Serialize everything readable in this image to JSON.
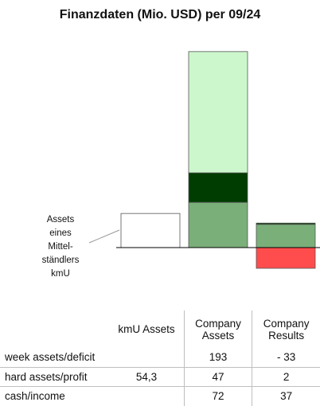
{
  "title": "Finanzdaten (Mio. USD) per 09/24",
  "note": "Assets\neines\nMittel-\nständlers\nkmU",
  "table": {
    "headers": [
      "",
      "kmU Assets",
      "Company\nAssets",
      "Company\nResults"
    ],
    "rows": [
      {
        "label": "week assets/deficit",
        "kmu": "",
        "assets": "193",
        "results": "- 33"
      },
      {
        "label": "hard assets/profit",
        "kmu": "54,3",
        "assets": "47",
        "results": "2"
      },
      {
        "label": "cash/income",
        "kmu": "",
        "assets": "72",
        "results": "37"
      }
    ]
  },
  "chart_data": {
    "type": "bar",
    "stacked": true,
    "title": "Finanzdaten (Mio. USD) per 09/24",
    "categories": [
      "kmU Assets",
      "Company Assets",
      "Company Results"
    ],
    "series": [
      {
        "name": "cash/income",
        "values": [
          0,
          72,
          37
        ],
        "color": "#7aaf7a"
      },
      {
        "name": "hard assets/profit",
        "values": [
          54.3,
          47,
          2
        ],
        "color": "#003d00"
      },
      {
        "name": "week assets/deficit",
        "values": [
          0,
          193,
          -33
        ],
        "color": "#ccf7cc"
      }
    ],
    "colors": {
      "kmu_fill": "#ffffff",
      "deficit": "#ff4d4d",
      "outline": "#555555"
    },
    "grid": false,
    "legend": "none"
  }
}
